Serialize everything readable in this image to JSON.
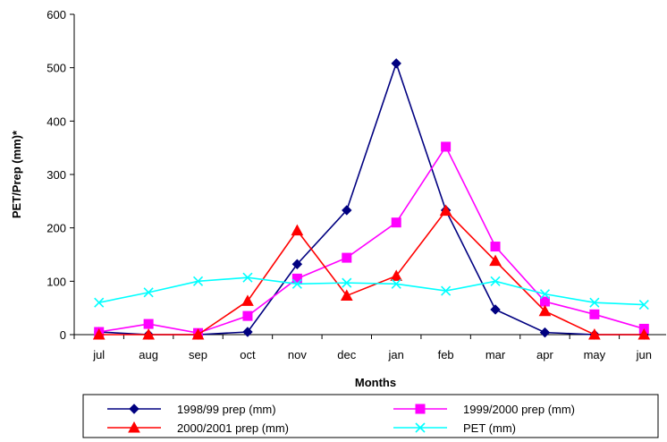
{
  "chart_data": {
    "type": "line",
    "title": "",
    "xlabel": "Months",
    "ylabel": "PET/Prep (mm)*",
    "ylim": [
      0,
      600
    ],
    "yticks": [
      0,
      100,
      200,
      300,
      400,
      500,
      600
    ],
    "grid": false,
    "legend_position": "bottom",
    "categories": [
      "jul",
      "aug",
      "sep",
      "oct",
      "nov",
      "dec",
      "jan",
      "feb",
      "mar",
      "apr",
      "may",
      "jun"
    ],
    "series": [
      {
        "name": "1998/99 prep (mm)",
        "color": "#000080",
        "marker": "diamond",
        "values": [
          5,
          0,
          0,
          5,
          132,
          233,
          508,
          233,
          47,
          4,
          0,
          0
        ]
      },
      {
        "name": "1999/2000 prep (mm)",
        "color": "#ff00ff",
        "marker": "square",
        "values": [
          5,
          20,
          3,
          35,
          105,
          144,
          210,
          352,
          165,
          62,
          38,
          11
        ]
      },
      {
        "name": "2000/2001 prep (mm)",
        "color": "#ff0000",
        "marker": "triangle",
        "values": [
          0,
          0,
          0,
          63,
          195,
          73,
          110,
          232,
          138,
          44,
          0,
          0
        ]
      },
      {
        "name": "PET (mm)",
        "color": "#00ffff",
        "marker": "x",
        "values": [
          60,
          79,
          100,
          107,
          95,
          97,
          95,
          82,
          100,
          76,
          60,
          56
        ]
      }
    ]
  }
}
